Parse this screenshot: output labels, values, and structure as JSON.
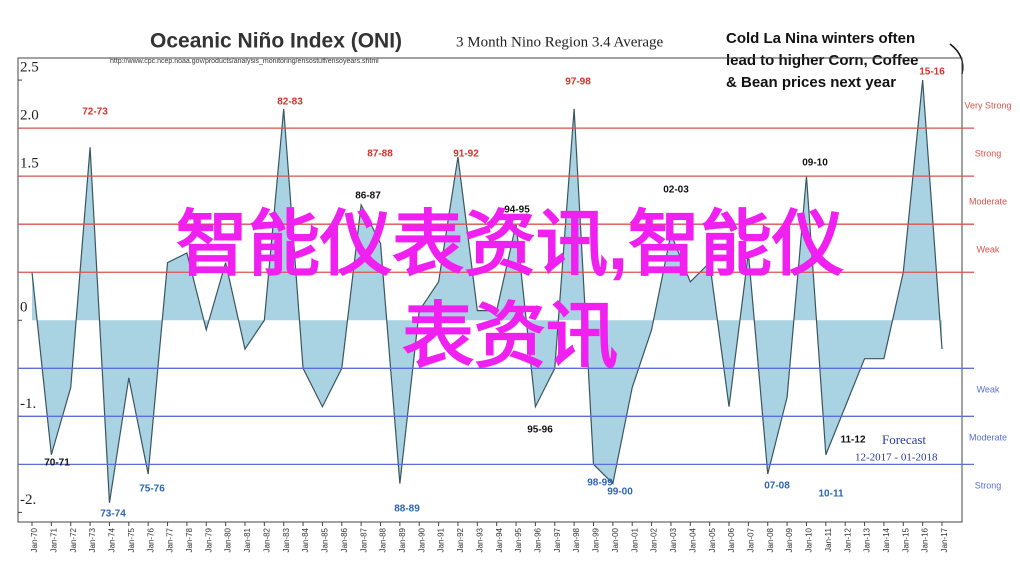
{
  "chart_data": {
    "type": "area",
    "title": "Oceanic Niño Index (ONI)",
    "subtitle": "3 Month Nino Region 3.4 Average",
    "source": "http://www.cpc.ncep.noaa.gov/products/analysis_monitoring/ensostuff/ensoyears.shtml",
    "callout": [
      "Cold La Nina winters often",
      "lead to higher Corn, Coffee",
      "& Bean prices next year"
    ],
    "forecast": [
      "Forecast",
      "12-2017 - 01-2018"
    ],
    "overlay": [
      "智能仪表资讯,智能仪",
      "表资讯"
    ],
    "categories": [
      "Jan-70",
      "Jan-71",
      "Jan-72",
      "Jan-73",
      "Jan-74",
      "Jan-75",
      "Jan-76",
      "Jan-77",
      "Jan-78",
      "Jan-79",
      "Jan-80",
      "Jan-81",
      "Jan-82",
      "Jan-83",
      "Jan-84",
      "Jan-85",
      "Jan-86",
      "Jan-87",
      "Jan-88",
      "Jan-89",
      "Jan-90",
      "Jan-91",
      "Jan-92",
      "Jan-93",
      "Jan-94",
      "Jan-95",
      "Jan-96",
      "Jan-97",
      "Jan-98",
      "Jan-99",
      "Jan-00",
      "Jan-01",
      "Jan-02",
      "Jan-03",
      "Jan-04",
      "Jan-05",
      "Jan-06",
      "Jan-07",
      "Jan-08",
      "Jan-09",
      "Jan-10",
      "Jan-11",
      "Jan-12",
      "Jan-13",
      "Jan-14",
      "Jan-15",
      "Jan-16",
      "Jan-17"
    ],
    "values": [
      0.5,
      -1.4,
      -0.7,
      1.8,
      -1.9,
      -0.6,
      -1.6,
      0.6,
      0.7,
      -0.1,
      0.6,
      -0.3,
      0.0,
      2.2,
      -0.5,
      -0.9,
      -0.5,
      1.2,
      0.8,
      -1.7,
      0.1,
      0.4,
      1.7,
      0.1,
      0.1,
      1.0,
      -0.9,
      -0.5,
      2.2,
      -1.5,
      -1.7,
      -0.7,
      -0.1,
      0.9,
      0.4,
      0.6,
      -0.9,
      0.7,
      -1.6,
      -0.8,
      1.5,
      -1.4,
      -0.9,
      -0.4,
      -0.4,
      0.5,
      2.5,
      -0.3
    ],
    "color": "#a9d3e3",
    "ylim": [
      -2.1,
      2.73
    ],
    "yticks": [
      {
        "value": -2,
        "label": "-2."
      },
      {
        "value": -1,
        "label": "-1."
      },
      0,
      1.5,
      {
        "value": 2,
        "label": "2.0"
      },
      2.5
    ],
    "thresholds": [
      {
        "value": 2.0,
        "label": "Very Strong",
        "color": "#d9534f"
      },
      {
        "value": 1.5,
        "label": "Strong",
        "color": "#d9534f"
      },
      {
        "value": 1.0,
        "label": "Moderate",
        "color": "#d9534f"
      },
      {
        "value": 0.5,
        "label": "Weak",
        "color": "#d9534f"
      },
      {
        "value": -0.5,
        "label": "Weak",
        "color": "#5b6fd6"
      },
      {
        "value": -1.0,
        "label": "Moderate",
        "color": "#5b6fd6"
      },
      {
        "value": -1.5,
        "label": "Strong",
        "color": "#5b6fd6"
      }
    ],
    "annotations": [
      "72-73",
      "82-83",
      "87-88",
      "91-92",
      "86-87",
      "94-95",
      "97-98",
      "02-03",
      "09-10",
      "15-16",
      "70-71",
      "73-74",
      "75-76",
      "88-89",
      "95-96",
      "98-99",
      "99-00",
      "07-08",
      "10-11",
      "11-12"
    ]
  }
}
